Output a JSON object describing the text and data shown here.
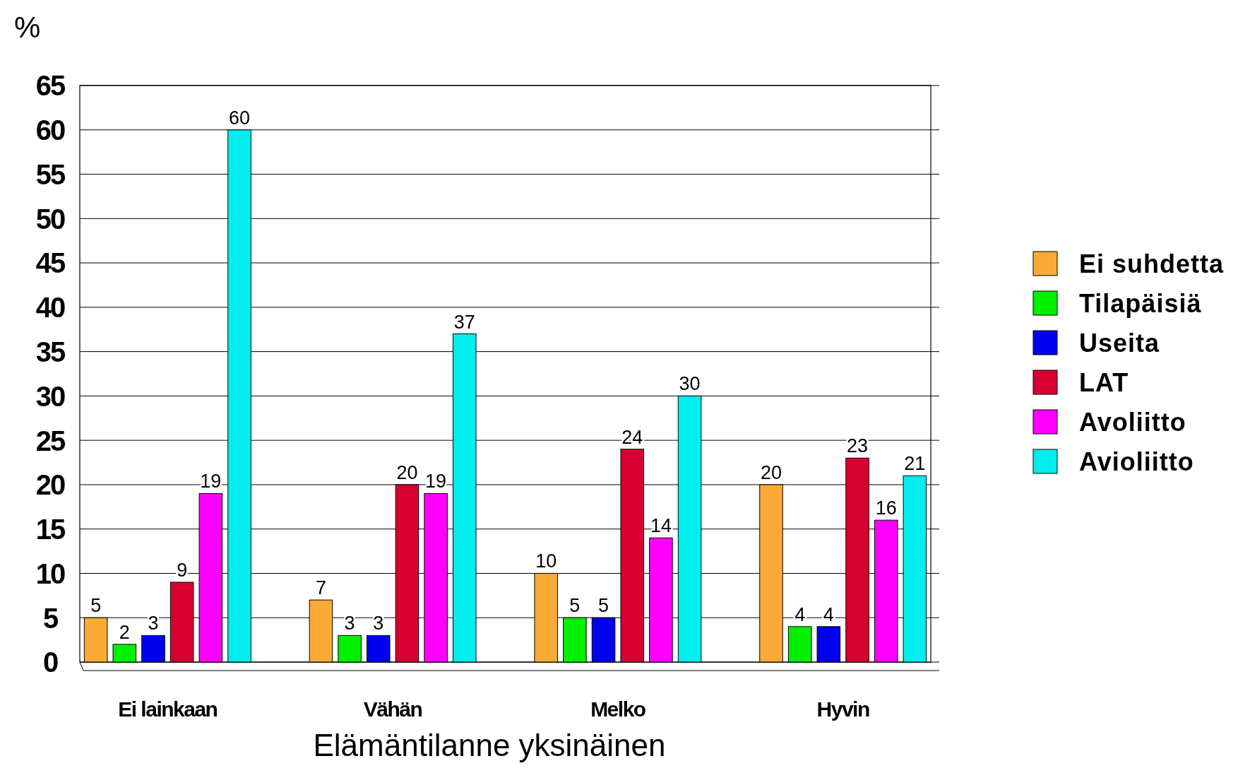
{
  "chart_data": {
    "type": "bar",
    "ylabel": "%",
    "xlabel": "Elämäntilanne yksinäinen",
    "categories": [
      "Ei lainkaan",
      "Vähän",
      "Melko",
      "Hyvin"
    ],
    "series": [
      {
        "name": "Ei suhdetta",
        "color": "#fbaa35",
        "values": [
          5,
          7,
          10,
          20
        ]
      },
      {
        "name": "Tilapäisiä",
        "color": "#00f000",
        "values": [
          2,
          3,
          5,
          4
        ]
      },
      {
        "name": "Useita",
        "color": "#0000f0",
        "values": [
          3,
          3,
          5,
          4
        ]
      },
      {
        "name": "LAT",
        "color": "#d80032",
        "values": [
          9,
          20,
          24,
          23
        ]
      },
      {
        "name": "Avoliitto",
        "color": "#ff00ff",
        "values": [
          19,
          19,
          14,
          16
        ]
      },
      {
        "name": "Avioliitto",
        "color": "#00eeee",
        "values": [
          60,
          37,
          30,
          21
        ]
      }
    ],
    "ylim": [
      0,
      65
    ],
    "yticks": [
      0,
      5,
      10,
      15,
      20,
      25,
      30,
      35,
      40,
      45,
      50,
      55,
      60,
      65
    ],
    "grid": "y",
    "legend": "right",
    "data_labels": true
  }
}
